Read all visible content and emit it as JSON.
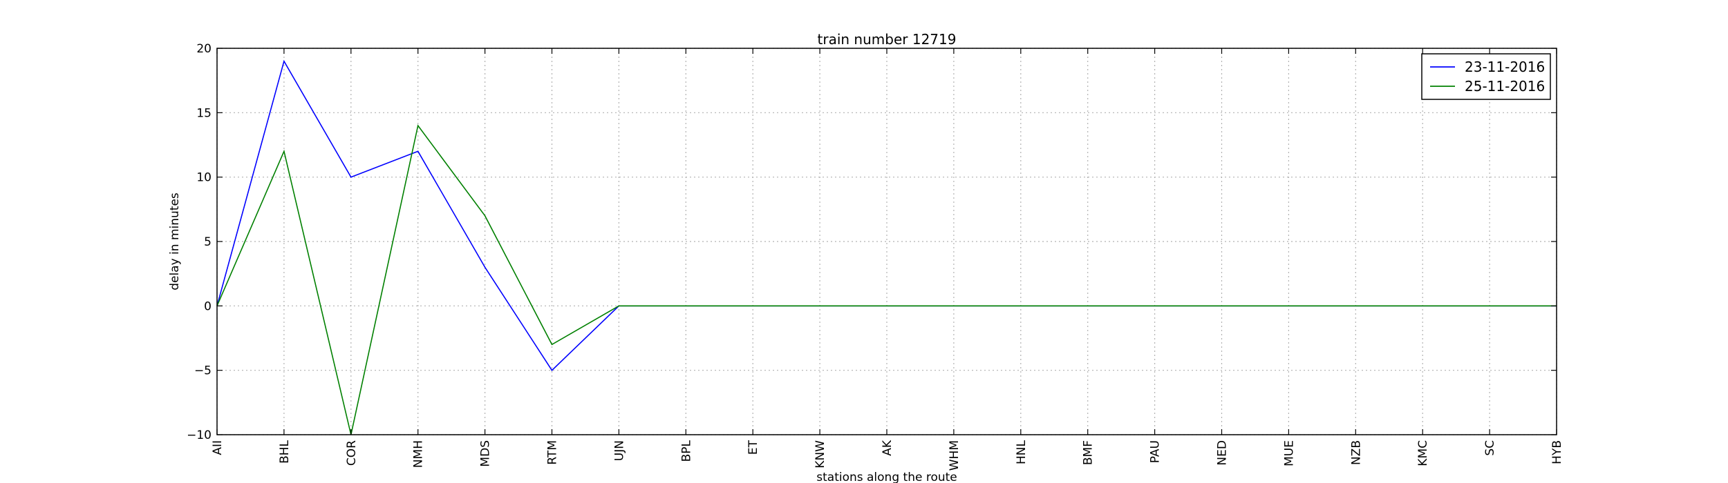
{
  "chart_data": {
    "type": "line",
    "title": "train number 12719",
    "xlabel": "stations along the route",
    "ylabel": "delay in minutes",
    "categories": [
      "AII",
      "BHL",
      "COR",
      "NMH",
      "MDS",
      "RTM",
      "UJN",
      "BPL",
      "ET",
      "KNW",
      "AK",
      "WHM",
      "HNL",
      "BMF",
      "PAU",
      "NED",
      "MUE",
      "NZB",
      "KMC",
      "SC",
      "HYB"
    ],
    "ylim": [
      -10,
      20
    ],
    "yticks": [
      -10,
      -5,
      0,
      5,
      10,
      15,
      20
    ],
    "ytick_labels": [
      "−10",
      "−5",
      "0",
      "5",
      "10",
      "15",
      "20"
    ],
    "grid": true,
    "legend_position": "top-right",
    "series": [
      {
        "name": "23-11-2016",
        "color": "#0000ff",
        "values": [
          0,
          19,
          10,
          12,
          3,
          -5,
          0,
          0,
          0,
          0,
          0,
          0,
          0,
          0,
          0,
          0,
          0,
          0,
          0,
          0,
          0
        ]
      },
      {
        "name": "25-11-2016",
        "color": "#008000",
        "values": [
          0,
          12,
          -10,
          14,
          7,
          -3,
          0,
          0,
          0,
          0,
          0,
          0,
          0,
          0,
          0,
          0,
          0,
          0,
          0,
          0,
          0
        ]
      }
    ]
  }
}
